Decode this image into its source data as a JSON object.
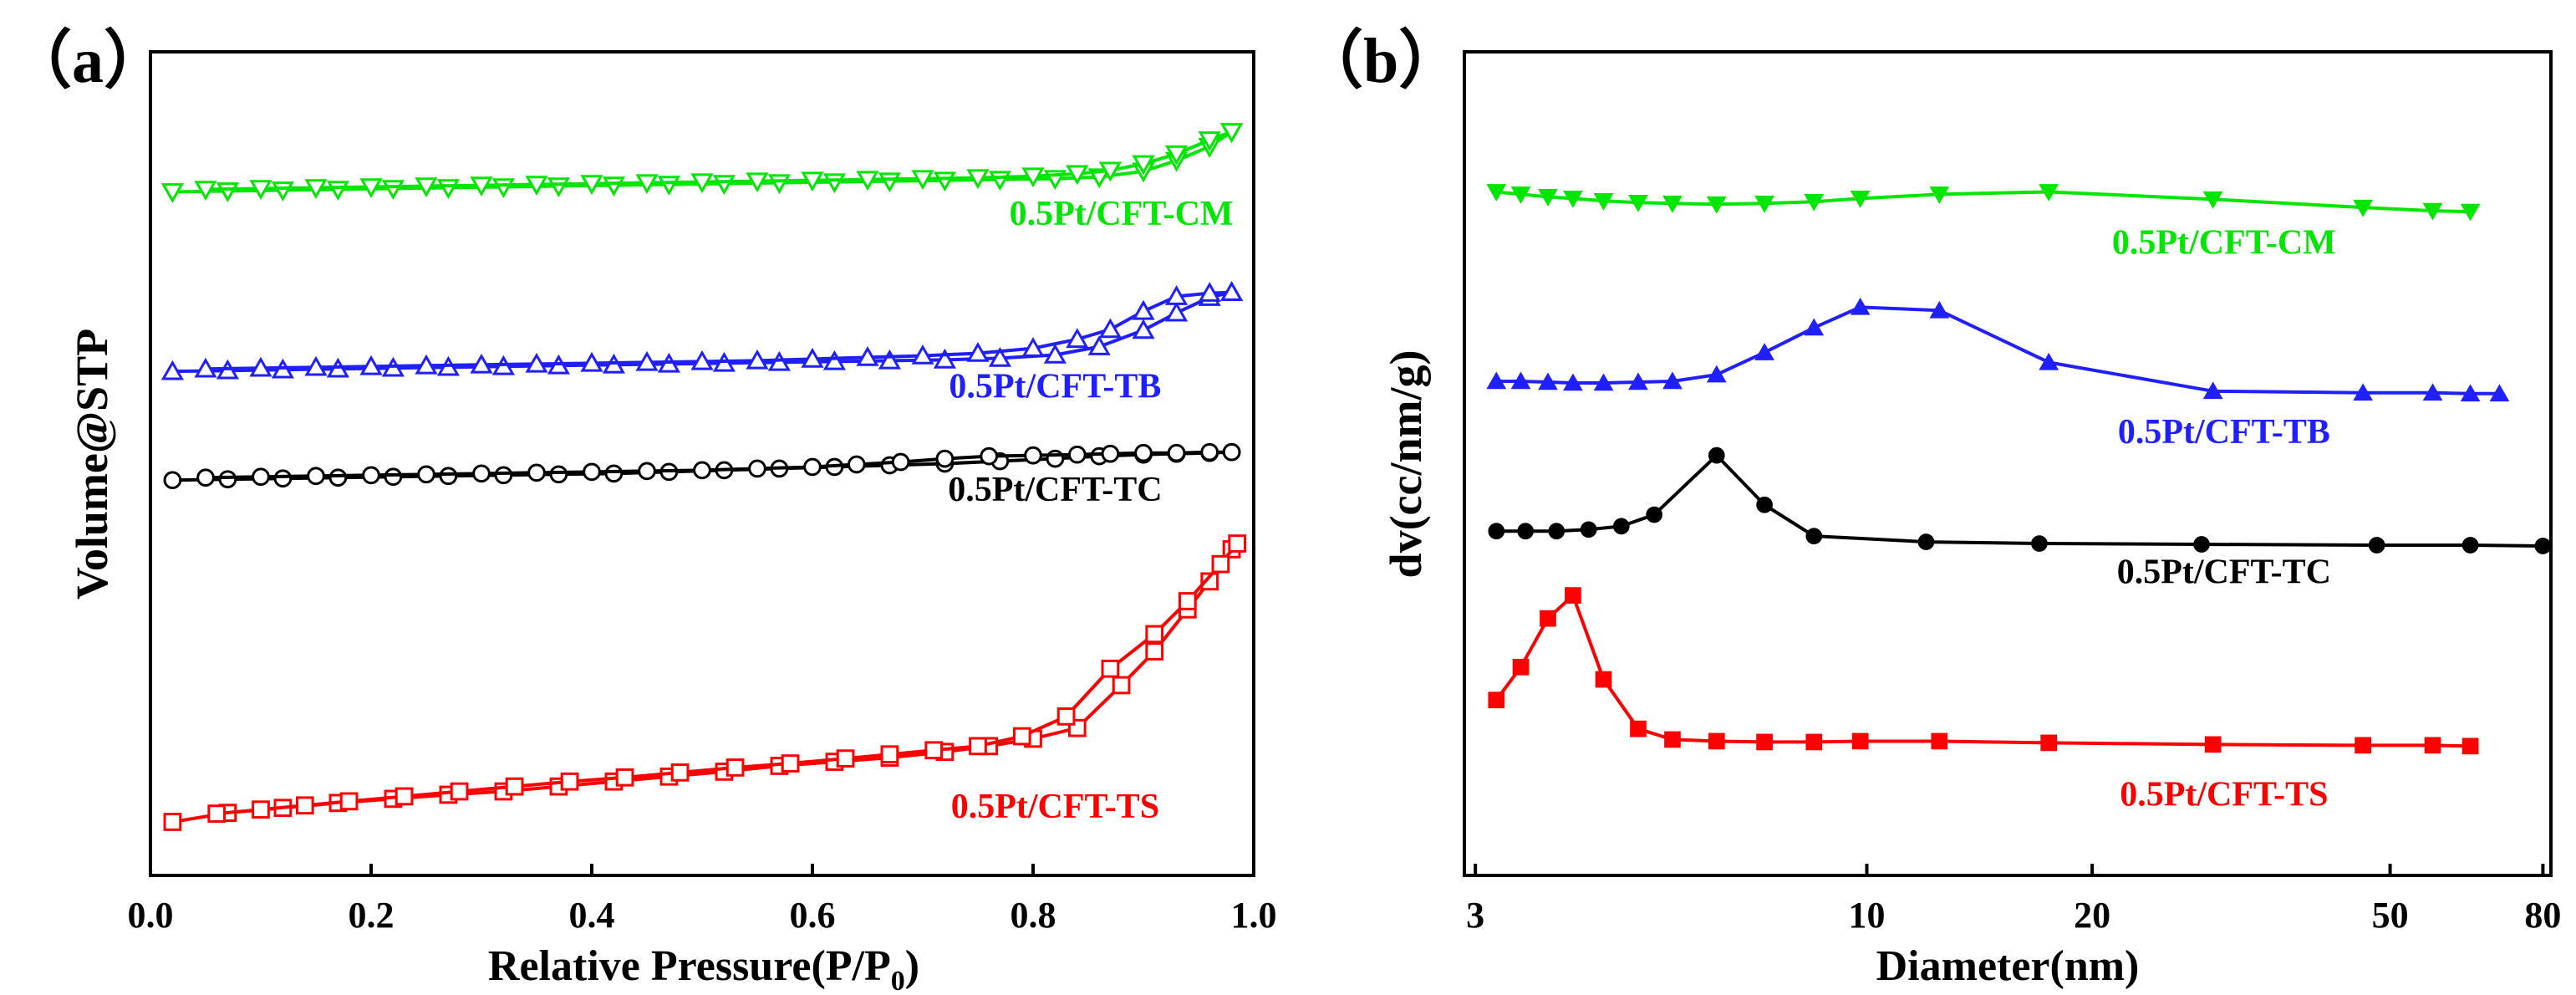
{
  "chart_data": [
    {
      "panel_label": "（a）",
      "type": "line",
      "xlabel": "Relative Pressure(P/P",
      "xlabel_sub": "0",
      "xlabel_close": ")",
      "ylabel": "Volume@STP",
      "xlim": [
        0.0,
        1.0
      ],
      "ylim": [
        0,
        100
      ],
      "xticks": [
        0.0,
        0.2,
        0.4,
        0.6,
        0.8,
        1.0
      ],
      "xtick_labels": [
        "0.0",
        "0.2",
        "0.4",
        "0.6",
        "0.8",
        "1.0"
      ],
      "y_ticks_labeled": false,
      "series": [
        {
          "name": "0.5Pt/CFT-CM",
          "color": "#00e600",
          "marker": "triangle-down-open",
          "label_at": [
            0.88,
            79
          ],
          "adsorption": {
            "x": [
              0.02,
              0.07,
              0.12,
              0.17,
              0.22,
              0.27,
              0.32,
              0.37,
              0.42,
              0.47,
              0.52,
              0.57,
              0.62,
              0.67,
              0.72,
              0.77,
              0.82,
              0.86,
              0.9,
              0.93,
              0.96,
              0.98
            ],
            "y": [
              83,
              83.1,
              83.2,
              83.3,
              83.4,
              83.5,
              83.6,
              83.7,
              83.8,
              83.9,
              84,
              84.1,
              84.2,
              84.3,
              84.4,
              84.5,
              84.6,
              84.8,
              85.5,
              86.8,
              88.5,
              90.3
            ]
          },
          "desorption": {
            "x": [
              0.98,
              0.96,
              0.93,
              0.9,
              0.87,
              0.84,
              0.8,
              0.75,
              0.7,
              0.65,
              0.6,
              0.55,
              0.5,
              0.45,
              0.4,
              0.35,
              0.3,
              0.25,
              0.2,
              0.15,
              0.1,
              0.05
            ],
            "y": [
              90.3,
              89.3,
              87.6,
              86.4,
              85.6,
              85.2,
              84.9,
              84.7,
              84.6,
              84.5,
              84.4,
              84.3,
              84.2,
              84.1,
              84,
              83.9,
              83.8,
              83.7,
              83.6,
              83.5,
              83.4,
              83.3
            ]
          }
        },
        {
          "name": "0.5Pt/CFT-TB",
          "color": "#1f1fff",
          "marker": "triangle-up-open",
          "label_at": [
            0.82,
            58
          ],
          "adsorption": {
            "x": [
              0.02,
              0.07,
              0.12,
              0.17,
              0.22,
              0.27,
              0.32,
              0.37,
              0.42,
              0.47,
              0.52,
              0.57,
              0.62,
              0.67,
              0.72,
              0.77,
              0.82,
              0.86,
              0.9,
              0.93,
              0.96,
              0.98
            ],
            "y": [
              61.2,
              61.3,
              61.4,
              61.5,
              61.6,
              61.7,
              61.8,
              61.9,
              62,
              62.1,
              62.2,
              62.3,
              62.4,
              62.5,
              62.6,
              62.8,
              63.2,
              64.2,
              66.2,
              68.3,
              70.2,
              70.8
            ]
          },
          "desorption": {
            "x": [
              0.98,
              0.96,
              0.93,
              0.9,
              0.87,
              0.84,
              0.8,
              0.75,
              0.7,
              0.65,
              0.6,
              0.55,
              0.5,
              0.45,
              0.4,
              0.35,
              0.3,
              0.25,
              0.2,
              0.15,
              0.1,
              0.05
            ],
            "y": [
              70.8,
              70.7,
              70.3,
              68.5,
              66.3,
              65.1,
              64,
              63.4,
              63.1,
              62.9,
              62.7,
              62.5,
              62.4,
              62.3,
              62.2,
              62.1,
              62,
              61.9,
              61.8,
              61.7,
              61.6,
              61.5
            ]
          }
        },
        {
          "name": "0.5Pt/CFT-TC",
          "color": "#000000",
          "marker": "circle-open",
          "label_at": [
            0.82,
            45.5
          ],
          "adsorption": {
            "x": [
              0.02,
              0.07,
              0.12,
              0.17,
              0.22,
              0.27,
              0.32,
              0.37,
              0.42,
              0.47,
              0.52,
              0.57,
              0.62,
              0.67,
              0.72,
              0.77,
              0.82,
              0.86,
              0.9,
              0.93,
              0.96,
              0.98
            ],
            "y": [
              48,
              48.1,
              48.2,
              48.3,
              48.4,
              48.5,
              48.6,
              48.7,
              48.8,
              49,
              49.2,
              49.4,
              49.6,
              49.8,
              50,
              50.3,
              50.6,
              50.9,
              51.1,
              51.2,
              51.3,
              51.4
            ]
          },
          "desorption": {
            "x": [
              0.98,
              0.96,
              0.93,
              0.9,
              0.87,
              0.84,
              0.8,
              0.76,
              0.72,
              0.68,
              0.64,
              0.6,
              0.55,
              0.5,
              0.45,
              0.4,
              0.35,
              0.3,
              0.25,
              0.2,
              0.15,
              0.1,
              0.05
            ],
            "y": [
              51.4,
              51.4,
              51.3,
              51.3,
              51.2,
              51.1,
              51,
              50.9,
              50.6,
              50.2,
              49.9,
              49.6,
              49.4,
              49.2,
              49.1,
              49,
              48.9,
              48.8,
              48.7,
              48.6,
              48.5,
              48.4,
              48.3
            ]
          }
        },
        {
          "name": "0.5Pt/CFT-TS",
          "color": "#ff0000",
          "marker": "square-open",
          "label_at": [
            0.82,
            7
          ],
          "adsorption": {
            "x": [
              0.02,
              0.07,
              0.12,
              0.17,
              0.22,
              0.27,
              0.32,
              0.37,
              0.42,
              0.47,
              0.52,
              0.57,
              0.62,
              0.67,
              0.72,
              0.76,
              0.8,
              0.84,
              0.88,
              0.91,
              0.94,
              0.96,
              0.98
            ],
            "y": [
              6.5,
              7.6,
              8.2,
              8.8,
              9.3,
              9.8,
              10.2,
              10.8,
              11.4,
              12,
              12.6,
              13.3,
              13.8,
              14.3,
              15,
              15.7,
              16.6,
              17.9,
              23.1,
              27.2,
              32.3,
              35.7,
              39.6
            ]
          },
          "desorption": {
            "x": [
              0.985,
              0.97,
              0.94,
              0.91,
              0.87,
              0.83,
              0.79,
              0.75,
              0.71,
              0.67,
              0.63,
              0.58,
              0.53,
              0.48,
              0.43,
              0.38,
              0.33,
              0.28,
              0.23,
              0.18,
              0.14,
              0.1,
              0.06
            ],
            "y": [
              40.3,
              37.8,
              33.3,
              29.3,
              25.1,
              19.3,
              16.9,
              15.7,
              15.2,
              14.7,
              14.2,
              13.6,
              13.1,
              12.5,
              11.9,
              11.4,
              10.8,
              10.2,
              9.6,
              9,
              8.5,
              8,
              7.5
            ]
          }
        }
      ]
    },
    {
      "panel_label": "（b）",
      "type": "line",
      "x_scale": "log",
      "xlabel": "Diameter(nm)",
      "ylabel": "dv(cc/nm/g)",
      "xlim": [
        2.9,
        82
      ],
      "ylim": [
        0,
        100
      ],
      "xticks": [
        3,
        10,
        20,
        50,
        80
      ],
      "xtick_labels": [
        "3",
        "10",
        "20",
        "50",
        "80"
      ],
      "y_ticks_labeled": false,
      "series": [
        {
          "name": "0.5Pt/CFT-CM",
          "color": "#00e600",
          "marker": "triangle-down-filled",
          "label_at": [
            30,
            75.5
          ],
          "x": [
            3.2,
            3.45,
            3.75,
            4.05,
            4.45,
            4.95,
            5.5,
            6.3,
            7.3,
            8.5,
            9.8,
            12.5,
            17.5,
            29,
            46,
            57,
            64
          ],
          "y": [
            83,
            82.7,
            82.4,
            82.2,
            81.9,
            81.7,
            81.6,
            81.5,
            81.6,
            81.8,
            82.2,
            82.7,
            83,
            82.1,
            81.1,
            80.7,
            80.6
          ]
        },
        {
          "name": "0.5Pt/CFT-TB",
          "color": "#1f1fff",
          "marker": "triangle-up-filled",
          "label_at": [
            30,
            52.5
          ],
          "x": [
            3.2,
            3.45,
            3.75,
            4.05,
            4.45,
            4.95,
            5.5,
            6.3,
            7.3,
            8.5,
            9.8,
            12.5,
            17.5,
            29,
            46,
            57,
            64,
            70
          ],
          "y": [
            60,
            60,
            59.9,
            59.8,
            59.8,
            59.9,
            60,
            60.8,
            63.5,
            66.5,
            69,
            68.6,
            62.3,
            58.8,
            58.6,
            58.6,
            58.5,
            58.5
          ]
        },
        {
          "name": "0.5Pt/CFT-TC",
          "color": "#000000",
          "marker": "circle-filled",
          "label_at": [
            30,
            35.5
          ],
          "x": [
            3.2,
            3.5,
            3.85,
            4.25,
            4.7,
            5.2,
            6.3,
            7.3,
            8.5,
            12,
            17,
            28,
            48,
            64,
            80
          ],
          "y": [
            41.8,
            41.8,
            41.8,
            42,
            42.4,
            43.8,
            51,
            45,
            41.2,
            40.5,
            40.3,
            40.2,
            40.1,
            40.1,
            40
          ]
        },
        {
          "name": "0.5Pt/CFT-TS",
          "color": "#ff0000",
          "marker": "square-filled",
          "label_at": [
            30,
            8.5
          ],
          "x": [
            3.2,
            3.45,
            3.75,
            4.05,
            4.45,
            4.95,
            5.5,
            6.3,
            7.3,
            8.5,
            9.8,
            12.5,
            17.5,
            29,
            46,
            57,
            64
          ],
          "y": [
            21.3,
            25.3,
            31.2,
            34,
            23.8,
            17.8,
            16.5,
            16.3,
            16.2,
            16.2,
            16.3,
            16.3,
            16.1,
            15.9,
            15.8,
            15.8,
            15.7
          ]
        }
      ]
    }
  ]
}
